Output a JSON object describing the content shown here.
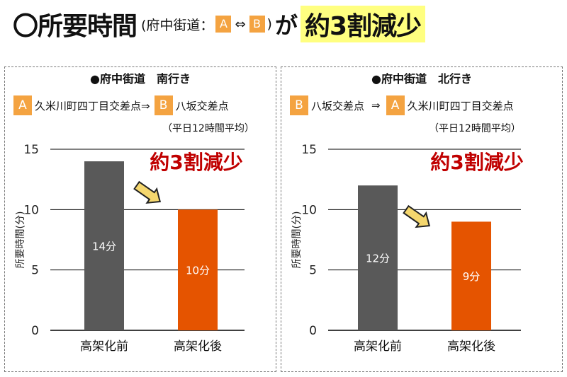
{
  "headline": {
    "main": "〇所要時間",
    "sub_open": "(府中街道：",
    "box_a": "A",
    "arrow": "⇔",
    "box_b": "B",
    "sub_close": ")",
    "connector": "が",
    "highlight": "約3割減少"
  },
  "colors": {
    "before": "#595959",
    "after": "#e55400",
    "callout": "#c00000",
    "box": "#f4a341",
    "highlight": "#ffff80"
  },
  "panels": [
    {
      "title": "●府中街道　南行き",
      "route": {
        "from_box": "A",
        "from": "久米川町四丁目交差点⇒",
        "arrow": "",
        "to_box": "B",
        "to": "八坂交差点"
      },
      "condition": "（平日12時間平均）",
      "callout": "約3割減少"
    },
    {
      "title": "●府中街道　北行き",
      "route": {
        "from_box": "B",
        "from": "八坂交差点",
        "arrow": "⇒",
        "to_box": "A",
        "to": "久米川町四丁目交差点"
      },
      "condition": "（平日12時間平均）",
      "callout": "約3割減少"
    }
  ],
  "chart_data": [
    {
      "type": "bar",
      "categories": [
        "高架化前",
        "高架化後"
      ],
      "values": [
        14,
        10
      ],
      "value_labels": [
        "14分",
        "10分"
      ],
      "ylabel": "所要時間(分)",
      "ylim": [
        0,
        15
      ],
      "yticks": [
        0,
        5,
        10,
        15
      ],
      "grid": true
    },
    {
      "type": "bar",
      "categories": [
        "高架化前",
        "高架化後"
      ],
      "values": [
        12,
        9
      ],
      "value_labels": [
        "12分",
        "9分"
      ],
      "ylabel": "所要時間(分)",
      "ylim": [
        0,
        15
      ],
      "yticks": [
        0,
        5,
        10,
        15
      ],
      "grid": true
    }
  ]
}
